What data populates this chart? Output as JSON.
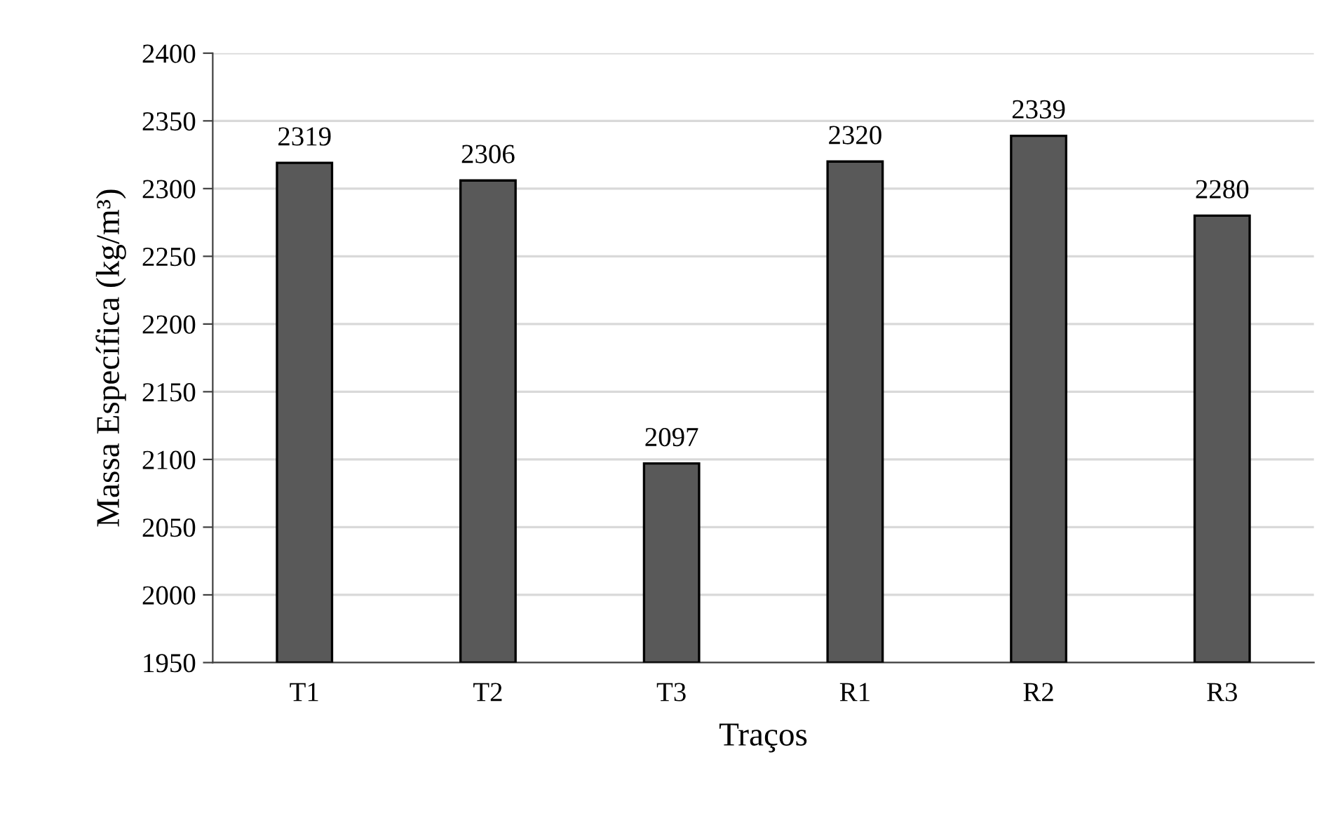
{
  "chart_data": {
    "type": "bar",
    "xlabel": "Traços",
    "ylabel": "Massa Específica (kg/m³)",
    "categories": [
      "T1",
      "T2",
      "T3",
      "R1",
      "R2",
      "R3"
    ],
    "values": [
      2319,
      2306,
      2097,
      2320,
      2339,
      2280
    ],
    "color": "#595959",
    "ylim": [
      1950,
      2400
    ],
    "yticks": [
      1950,
      2000,
      2050,
      2100,
      2150,
      2200,
      2250,
      2300,
      2350,
      2400
    ],
    "grid": "y",
    "data_labels": true
  }
}
